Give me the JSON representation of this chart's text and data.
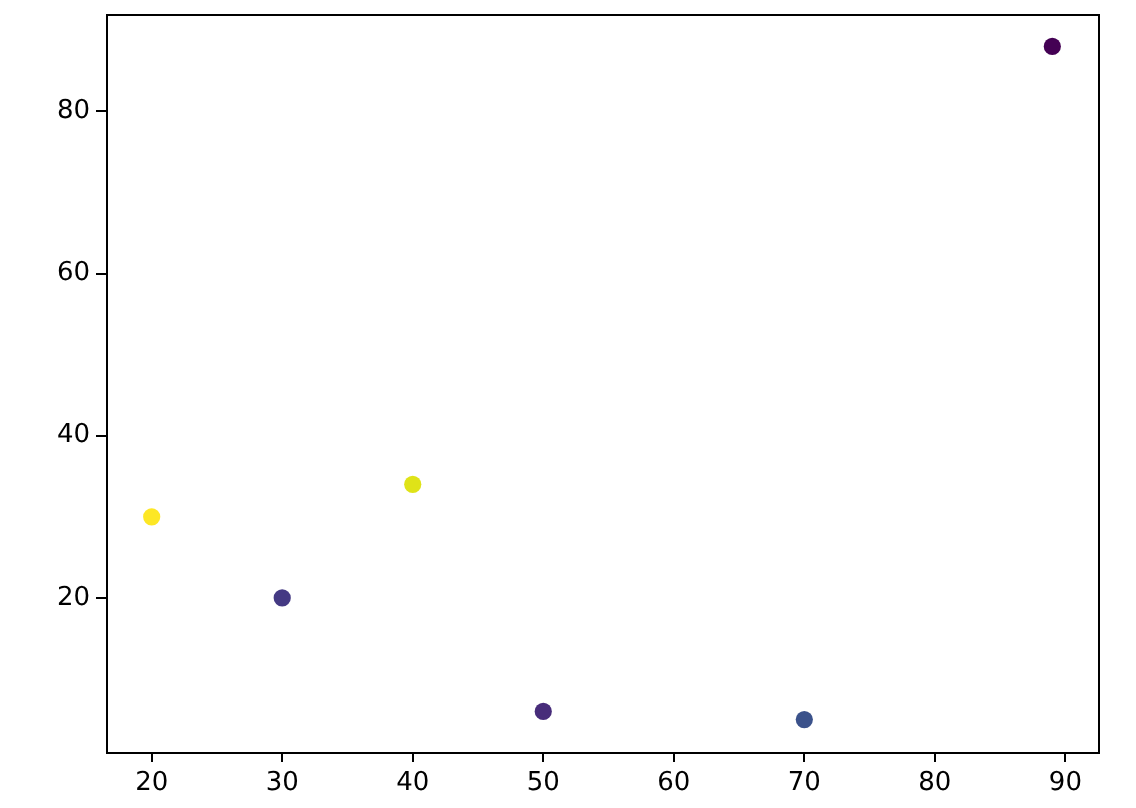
{
  "chart_data": {
    "type": "scatter",
    "x": [
      20,
      30,
      40,
      50,
      70,
      89
    ],
    "values": [
      30,
      20,
      34,
      6,
      5,
      88
    ],
    "colors": [
      "#fde725",
      "#443983",
      "#dfe318",
      "#472c7a",
      "#3b528b",
      "#440154"
    ],
    "xlim": [
      16.5,
      92.5
    ],
    "ylim": [
      1,
      92
    ],
    "xticks": [
      20,
      30,
      40,
      50,
      60,
      70,
      80,
      90
    ],
    "yticks": [
      20,
      40,
      60,
      80
    ],
    "marker": "circle"
  }
}
